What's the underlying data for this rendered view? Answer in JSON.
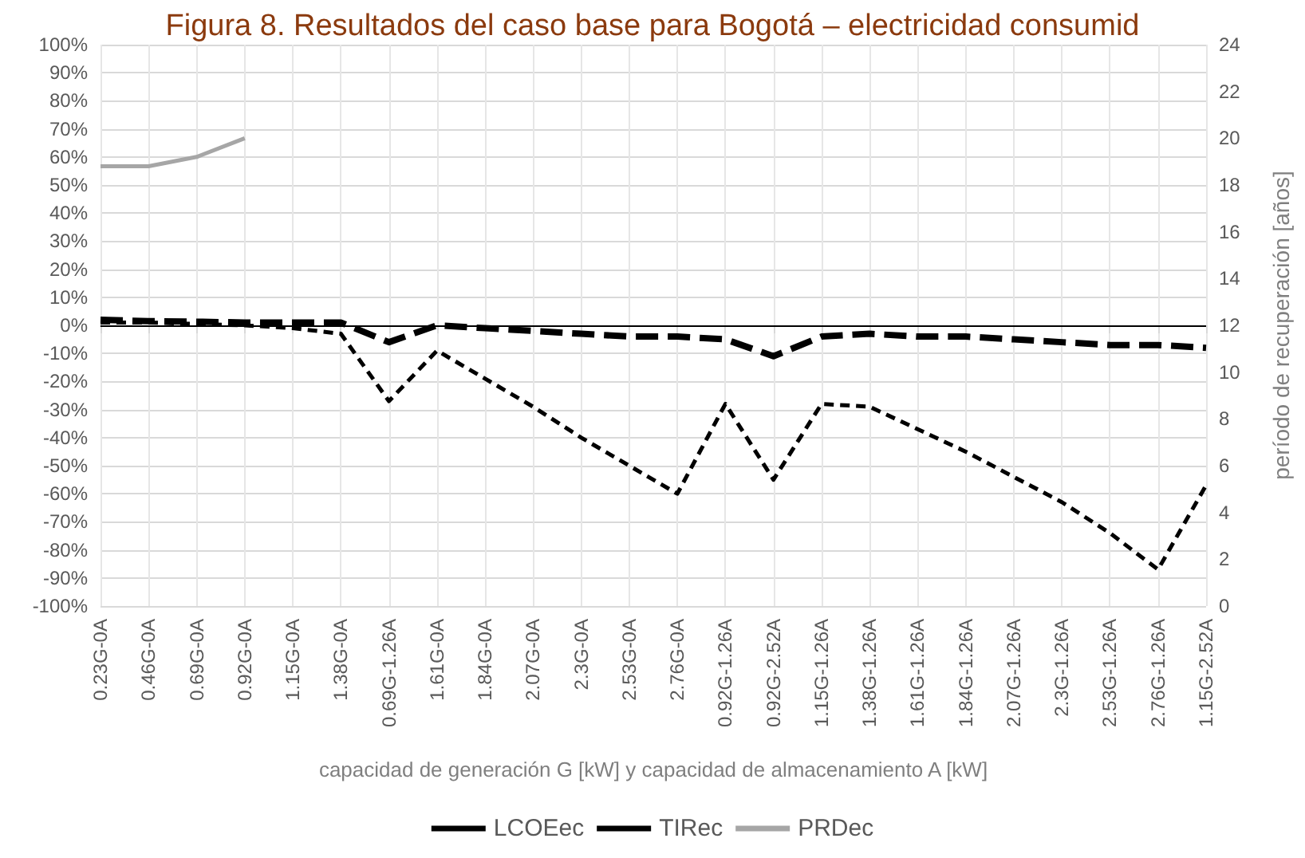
{
  "chart_data": {
    "type": "line",
    "title": "Figura 8. Resultados del caso base para Bogotá – electricidad consumid",
    "xlabel": "capacidad de generación G [kW] y capacidad de almacenamiento A [kW]",
    "y2label": "período de recuperación [años]",
    "categories": [
      "0.23G-0A",
      "0.46G-0A",
      "0.69G-0A",
      "0.92G-0A",
      "1.15G-0A",
      "1.38G-0A",
      "0.69G-1.26A",
      "1.61G-0A",
      "1.84G-0A",
      "2.07G-0A",
      "2.3G-0A",
      "2.53G-0A",
      "2.76G-0A",
      "0.92G-1.26A",
      "0.92G-2.52A",
      "1.15G-1.26A",
      "1.38G-1.26A",
      "1.61G-1.26A",
      "1.84G-1.26A",
      "2.07G-1.26A",
      "2.3G-1.26A",
      "2.53G-1.26A",
      "2.76G-1.26A",
      "1.15G-2.52A"
    ],
    "series": [
      {
        "name": "LCOEec",
        "color": "#000000",
        "line_style": "dashed",
        "values": [
          1,
          1,
          0.5,
          0,
          -1,
          -3,
          -27,
          -9,
          -19,
          -29,
          -40,
          -50,
          -60,
          -28,
          -55,
          -28,
          -29,
          -37,
          -45,
          -54,
          -63,
          -74,
          -87,
          -57
        ]
      },
      {
        "name": "TIRec",
        "color": "#000000",
        "line_style": "dashed",
        "values": [
          2,
          1.5,
          1.3,
          1,
          1,
          1,
          -6,
          0,
          -1,
          -2,
          -3,
          -4,
          -4,
          -5,
          -11,
          -4,
          -3,
          -4,
          -4,
          -5,
          -6,
          -7,
          -7,
          -8
        ]
      },
      {
        "name": "PRDec",
        "color": "#a6a6a6",
        "line_style": "solid",
        "axis": "y2",
        "values": [
          18.8,
          18.8,
          19.2,
          20,
          null,
          null,
          null,
          null,
          null,
          null,
          null,
          null,
          null,
          null,
          null,
          null,
          null,
          null,
          null,
          null,
          null,
          null,
          null,
          null
        ]
      }
    ],
    "ylim": [
      -100,
      100
    ],
    "yticks": [
      {
        "value": -100,
        "label": "-100%"
      },
      {
        "value": -90,
        "label": "-90%"
      },
      {
        "value": -80,
        "label": "-80%"
      },
      {
        "value": -70,
        "label": "-70%"
      },
      {
        "value": -60,
        "label": "-60%"
      },
      {
        "value": -50,
        "label": "-50%"
      },
      {
        "value": -40,
        "label": "-40%"
      },
      {
        "value": -30,
        "label": "-30%"
      },
      {
        "value": -20,
        "label": "-20%"
      },
      {
        "value": -10,
        "label": "-10%"
      },
      {
        "value": 0,
        "label": "0%"
      },
      {
        "value": 10,
        "label": "10%"
      },
      {
        "value": 20,
        "label": "20%"
      },
      {
        "value": 30,
        "label": "30%"
      },
      {
        "value": 40,
        "label": "40%"
      },
      {
        "value": 50,
        "label": "50%"
      },
      {
        "value": 60,
        "label": "60%"
      },
      {
        "value": 70,
        "label": "70%"
      },
      {
        "value": 80,
        "label": "80%"
      },
      {
        "value": 90,
        "label": "90%"
      },
      {
        "value": 100,
        "label": "100%"
      }
    ],
    "y2lim": [
      0,
      24
    ],
    "y2ticks": [
      0,
      2,
      4,
      6,
      8,
      10,
      12,
      14,
      16,
      18,
      20,
      22,
      24
    ],
    "ref_lines": [
      {
        "axis": "y",
        "value": 0,
        "color": "#000000"
      }
    ],
    "grid": true,
    "legend": "bottom",
    "marker": "none"
  }
}
